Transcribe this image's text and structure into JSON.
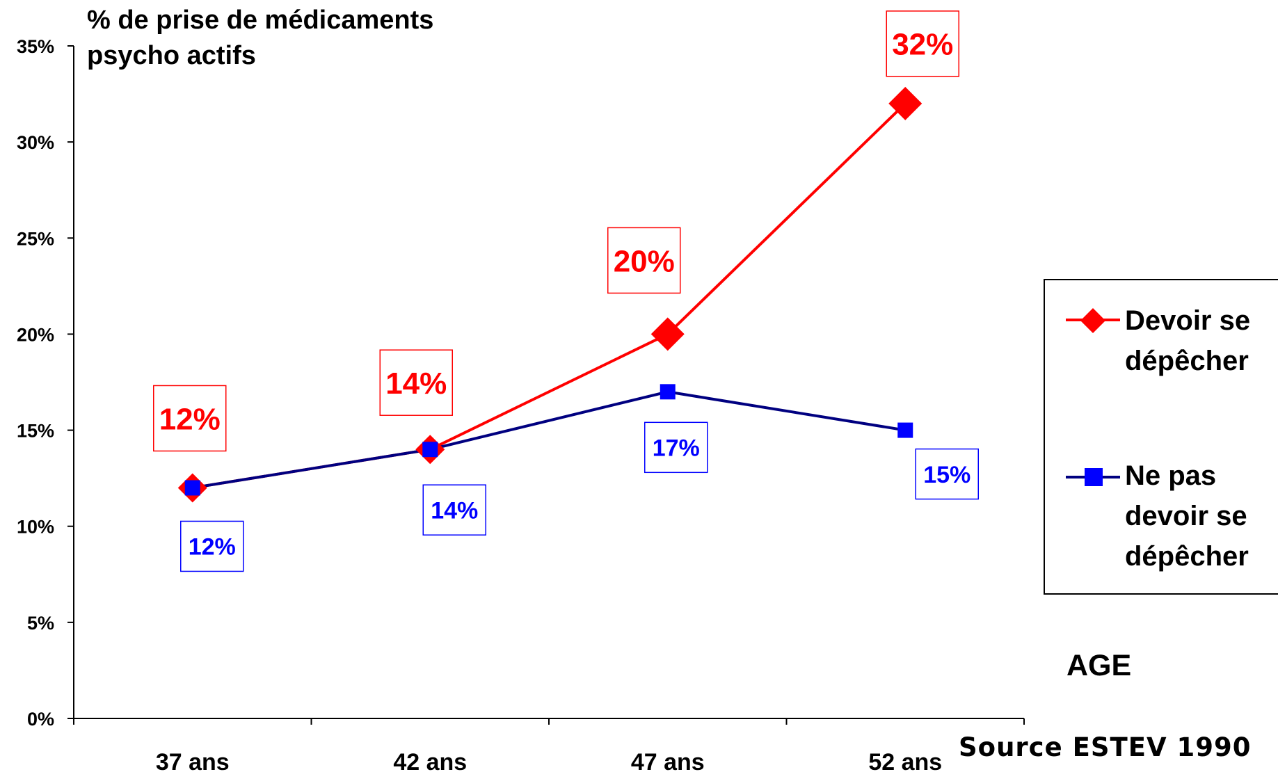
{
  "chart_data": {
    "type": "line",
    "title": "",
    "ylabel": "% de prise de médicaments psycho actifs",
    "ylabel_lines": [
      "% de prise de médicaments",
      "psycho actifs"
    ],
    "xlabel": "AGE",
    "categories": [
      "37 ans",
      "42 ans",
      "47 ans",
      "52 ans"
    ],
    "ylim": [
      0,
      35
    ],
    "yticks": [
      "0%",
      "5%",
      "10%",
      "15%",
      "20%",
      "25%",
      "30%",
      "35%"
    ],
    "ytick_values": [
      0,
      5,
      10,
      15,
      20,
      25,
      30,
      35
    ],
    "grid": false,
    "legend_position": "right",
    "series": [
      {
        "name": "Devoir se dépêcher",
        "values": [
          12,
          14,
          20,
          32
        ],
        "labels": [
          "12%",
          "14%",
          "20%",
          "32%"
        ],
        "color": "#ff0000",
        "marker": "diamond"
      },
      {
        "name": "Ne pas devoir se dépêcher",
        "values": [
          12,
          14,
          17,
          15
        ],
        "labels": [
          "12%",
          "14%",
          "17%",
          "15%"
        ],
        "color": "#0000ff",
        "line_color": "#000080",
        "marker": "square"
      }
    ],
    "source": "Source ESTEV 1990"
  }
}
